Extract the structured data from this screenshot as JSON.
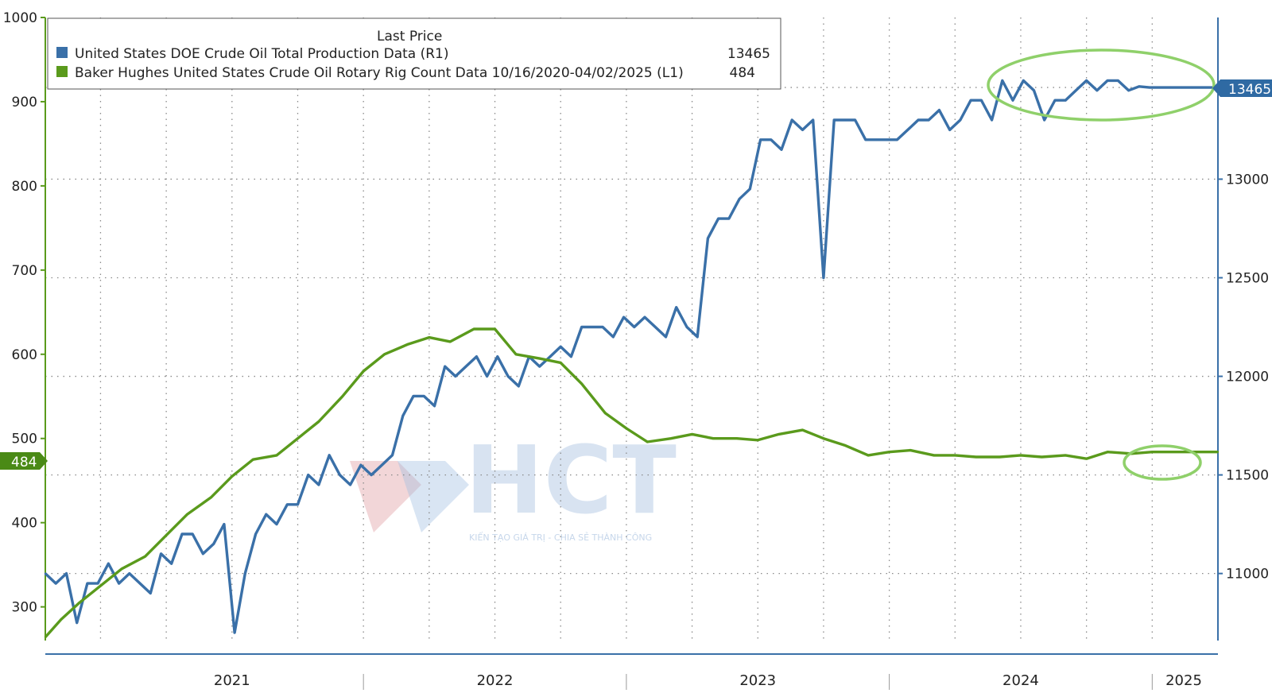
{
  "legend": {
    "header": "Last Price",
    "series": [
      {
        "label": "United States DOE Crude Oil Total Production Data  (R1)",
        "value": "13465",
        "color": "#3a70a8"
      },
      {
        "label": "Baker Hughes United States Crude Oil Rotary Rig Count Data 10/16/2020-04/02/2025   (L1)",
        "value": "484",
        "color": "#5a9a1c"
      }
    ]
  },
  "watermark": {
    "text": "HCT",
    "tagline": "KIẾN TẠO GIÁ TRỊ - CHIA SẺ THÀNH CÔNG"
  },
  "badges": {
    "left": "484",
    "right": "13465"
  },
  "colors": {
    "production": "#3a70a8",
    "rigs": "#5a9a1c",
    "highlight": "#8fd06a",
    "badge_right": "#2f6aa3",
    "badge_left": "#4a8a16"
  },
  "chart_data": {
    "type": "line",
    "x_range": [
      "2020-10-16",
      "2025-04-02"
    ],
    "x_tick_labels": [
      "2021",
      "2022",
      "2023",
      "2024",
      "2025"
    ],
    "left_axis": {
      "ticks": [
        300,
        400,
        500,
        600,
        700,
        800,
        900,
        1000
      ],
      "ylim": [
        260,
        1000
      ]
    },
    "right_axis": {
      "ticks": [
        11000,
        11500,
        12000,
        12500,
        13000,
        13465
      ],
      "ylim": [
        10660,
        13820
      ]
    },
    "grid": true,
    "legend_position": "top-left",
    "series": [
      {
        "name": "United States DOE Crude Oil Total Production Data",
        "axis": "right",
        "color": "#3a70a8",
        "x": [
          2020.79,
          2020.83,
          2020.87,
          2020.91,
          2020.95,
          2020.99,
          2021.03,
          2021.07,
          2021.11,
          2021.15,
          2021.19,
          2021.23,
          2021.27,
          2021.31,
          2021.35,
          2021.39,
          2021.43,
          2021.47,
          2021.51,
          2021.55,
          2021.59,
          2021.63,
          2021.67,
          2021.71,
          2021.75,
          2021.79,
          2021.83,
          2021.87,
          2021.91,
          2021.95,
          2021.99,
          2022.03,
          2022.07,
          2022.11,
          2022.15,
          2022.19,
          2022.23,
          2022.27,
          2022.31,
          2022.35,
          2022.39,
          2022.43,
          2022.47,
          2022.51,
          2022.55,
          2022.59,
          2022.63,
          2022.67,
          2022.71,
          2022.75,
          2022.79,
          2022.83,
          2022.87,
          2022.91,
          2022.95,
          2022.99,
          2023.03,
          2023.07,
          2023.11,
          2023.15,
          2023.19,
          2023.23,
          2023.27,
          2023.31,
          2023.35,
          2023.39,
          2023.43,
          2023.47,
          2023.51,
          2023.55,
          2023.59,
          2023.63,
          2023.67,
          2023.71,
          2023.75,
          2023.79,
          2023.83,
          2023.87,
          2023.91,
          2023.95,
          2023.99,
          2024.03,
          2024.07,
          2024.11,
          2024.15,
          2024.19,
          2024.23,
          2024.27,
          2024.31,
          2024.35,
          2024.39,
          2024.43,
          2024.47,
          2024.51,
          2024.55,
          2024.59,
          2024.63,
          2024.67,
          2024.71,
          2024.75,
          2024.79,
          2024.83,
          2024.87,
          2024.91,
          2024.95,
          2024.99,
          2025.03,
          2025.07,
          2025.11,
          2025.15,
          2025.19,
          2025.25
        ],
        "values": [
          11000,
          10950,
          11000,
          10750,
          10950,
          10950,
          11050,
          10950,
          11000,
          10950,
          10900,
          11100,
          11050,
          11200,
          11200,
          11100,
          11150,
          11250,
          10700,
          11000,
          11200,
          11300,
          11250,
          11350,
          11350,
          11500,
          11450,
          11600,
          11500,
          11450,
          11550,
          11500,
          11550,
          11600,
          11800,
          11900,
          11900,
          11850,
          12050,
          12000,
          12050,
          12100,
          12000,
          12100,
          12000,
          11950,
          12100,
          12050,
          12100,
          12150,
          12100,
          12250,
          12250,
          12250,
          12200,
          12300,
          12250,
          12300,
          12250,
          12200,
          12350,
          12250,
          12200,
          12700,
          12800,
          12800,
          12900,
          12950,
          13200,
          13200,
          13150,
          13300,
          13250,
          13300,
          12500,
          13300,
          13300,
          13300,
          13200,
          13200,
          13200,
          13200,
          13250,
          13300,
          13300,
          13350,
          13250,
          13300,
          13400,
          13400,
          13300,
          13500,
          13400,
          13500,
          13450,
          13300,
          13400,
          13400,
          13450,
          13500,
          13450,
          13500,
          13500,
          13450,
          13470,
          13465,
          13465,
          13465,
          13465,
          13465,
          13465,
          13465
        ]
      },
      {
        "name": "Baker Hughes United States Crude Oil Rotary Rig Count Data",
        "axis": "left",
        "color": "#5a9a1c",
        "x": [
          2020.79,
          2020.85,
          2020.92,
          2021.0,
          2021.08,
          2021.17,
          2021.25,
          2021.33,
          2021.42,
          2021.5,
          2021.58,
          2021.67,
          2021.75,
          2021.83,
          2021.92,
          2022.0,
          2022.08,
          2022.17,
          2022.25,
          2022.33,
          2022.42,
          2022.5,
          2022.58,
          2022.67,
          2022.75,
          2022.83,
          2022.92,
          2023.0,
          2023.08,
          2023.17,
          2023.25,
          2023.33,
          2023.42,
          2023.5,
          2023.58,
          2023.67,
          2023.75,
          2023.83,
          2023.92,
          2024.0,
          2024.08,
          2024.17,
          2024.25,
          2024.33,
          2024.42,
          2024.5,
          2024.58,
          2024.67,
          2024.75,
          2024.83,
          2024.92,
          2025.0,
          2025.08,
          2025.17,
          2025.25
        ],
        "values": [
          264,
          285,
          305,
          325,
          345,
          360,
          385,
          410,
          430,
          455,
          475,
          480,
          500,
          520,
          550,
          580,
          600,
          612,
          620,
          615,
          630,
          630,
          600,
          595,
          590,
          565,
          530,
          512,
          496,
          500,
          505,
          500,
          500,
          498,
          505,
          510,
          500,
          492,
          480,
          484,
          486,
          480,
          480,
          478,
          478,
          480,
          478,
          480,
          476,
          484,
          482,
          484,
          484,
          484,
          484
        ]
      }
    ]
  }
}
